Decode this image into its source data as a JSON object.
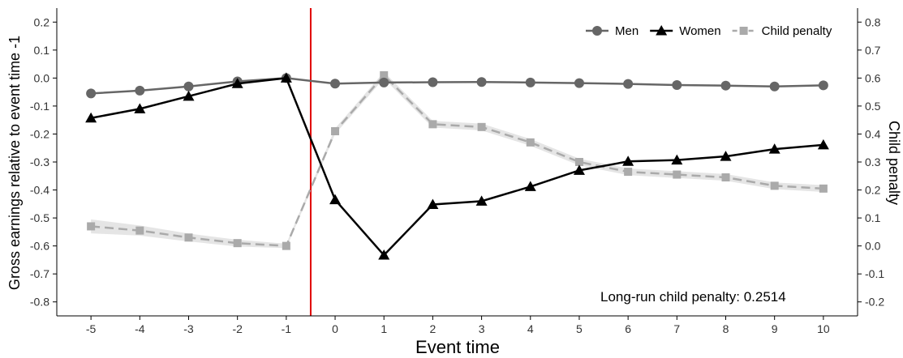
{
  "chart_data": {
    "type": "line",
    "xlabel": "Event time",
    "ylabel_left": "Gross earnings relative to event time -1",
    "ylabel_right": "Child penalty",
    "x": [
      -5,
      -4,
      -3,
      -2,
      -1,
      0,
      1,
      2,
      3,
      4,
      5,
      6,
      7,
      8,
      9,
      10
    ],
    "xlim": [
      -5.7,
      10.7
    ],
    "ylim_left": [
      -0.85,
      0.25
    ],
    "ylim_right": [
      -0.25,
      0.85
    ],
    "yticks_left": [
      -0.8,
      -0.7,
      -0.6,
      -0.5,
      -0.4,
      -0.3,
      -0.2,
      -0.1,
      0.0,
      0.1,
      0.2
    ],
    "yticks_right": [
      -0.2,
      -0.1,
      0.0,
      0.1,
      0.2,
      0.3,
      0.4,
      0.5,
      0.6,
      0.7,
      0.8
    ],
    "event_line_x": -0.5,
    "grid": false,
    "legend_position": "top-right",
    "annotation": "Long-run child penalty: 0.2514",
    "series": [
      {
        "name": "Men",
        "axis": "left",
        "marker": "circle",
        "color": "#666666",
        "values": [
          -0.055,
          -0.045,
          -0.03,
          -0.012,
          0.0,
          -0.02,
          -0.016,
          -0.015,
          -0.014,
          -0.016,
          -0.018,
          -0.021,
          -0.025,
          -0.027,
          -0.03,
          -0.026
        ]
      },
      {
        "name": "Women",
        "axis": "left",
        "marker": "triangle",
        "color": "#000000",
        "values": [
          -0.143,
          -0.11,
          -0.065,
          -0.02,
          0.0,
          -0.435,
          -0.633,
          -0.452,
          -0.44,
          -0.388,
          -0.33,
          -0.298,
          -0.293,
          -0.28,
          -0.254,
          -0.239
        ]
      },
      {
        "name": "Child penalty",
        "axis": "right",
        "marker": "square",
        "color": "#aaaaaa",
        "dashed": true,
        "values": [
          0.07,
          0.055,
          0.03,
          0.01,
          0.0,
          0.41,
          0.61,
          0.435,
          0.425,
          0.37,
          0.3,
          0.265,
          0.255,
          0.245,
          0.215,
          0.205
        ],
        "band_half_width": [
          0.025,
          0.018,
          0.014,
          0.012,
          0.008,
          0.01,
          0.012,
          0.012,
          0.012,
          0.012,
          0.012,
          0.012,
          0.012,
          0.012,
          0.012,
          0.012
        ]
      }
    ]
  }
}
